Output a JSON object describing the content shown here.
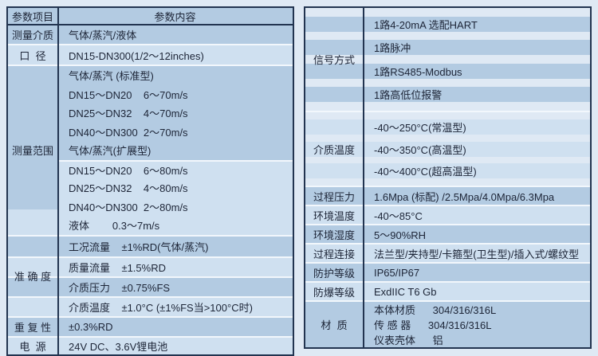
{
  "page": {
    "background": "#dfe9f4",
    "border_color": "#223450",
    "shade_medium": "#b3cbe2",
    "shade_light": "#cfe0f0",
    "separator_color": "#f2f7fc",
    "text_color": "#1d2537"
  },
  "left_table": {
    "header": {
      "col1": "参数项目",
      "col2": "参数内容"
    },
    "sections": [
      {
        "label": "测量介质",
        "lines": [
          {
            "text": "气体/蒸汽/液体",
            "shade": "m"
          }
        ]
      },
      {
        "label": "口  径",
        "lines": [
          {
            "text": "DN15-DN300(1/2～12inches)",
            "shade": "l"
          }
        ]
      },
      {
        "label": "测量范围",
        "label_shade": "split",
        "lines": [
          {
            "text": "气体/蒸汽 (标准型)",
            "shade": "m"
          },
          {
            "text": "DN15～DN20    6～70m/s",
            "shade": "m"
          },
          {
            "text": "DN25～DN32    4～70m/s",
            "shade": "m"
          },
          {
            "text": "DN40～DN300  2～70m/s",
            "shade": "m"
          },
          {
            "text": "气体/蒸汽(扩展型)",
            "shade": "m"
          },
          {
            "text": "DN15～DN20    6～80m/s",
            "shade": "l",
            "sep": true
          },
          {
            "text": "DN25～DN32    4～80m/s",
            "shade": "l"
          },
          {
            "text": "DN40～DN300  2～80m/s",
            "shade": "l"
          },
          {
            "text": "液体        0.3～7m/s",
            "shade": "l"
          }
        ]
      },
      {
        "label": "准 确 度",
        "lines": [
          {
            "text": "工况流量    ±1%RD(气体/蒸汽)",
            "shade": "m"
          },
          {
            "text": "质量流量    ±1.5%RD",
            "shade": "l",
            "sep": true
          },
          {
            "text": "介质压力    ±0.75%FS",
            "shade": "m",
            "sep": true
          },
          {
            "text": "介质温度    ±1.0°C (±1%FS当>100°C时)",
            "shade": "l",
            "sep": true
          }
        ]
      },
      {
        "label": "重 复 性",
        "lines": [
          {
            "text": "±0.3%RD",
            "shade": "m"
          }
        ]
      },
      {
        "label": "电  源",
        "lines": [
          {
            "text": "24V DC、3.6V锂电池",
            "shade": "l"
          }
        ]
      }
    ]
  },
  "right_table": {
    "sections": [
      {
        "label": "信号方式",
        "lines": [
          {
            "text": "1路4-20mA 选配HART",
            "shade": "m"
          },
          {
            "text": "1路脉冲",
            "shade": "m"
          },
          {
            "text": "1路RS485-Modbus",
            "shade": "m"
          },
          {
            "text": "1路高低位报警",
            "shade": "m"
          }
        ]
      },
      {
        "label": "介质温度",
        "lines": [
          {
            "text": "-40～250°C(常温型)",
            "shade": "l"
          },
          {
            "text": "-40～350°C(高温型)",
            "shade": "l"
          },
          {
            "text": "-40～400°C(超高温型)",
            "shade": "l"
          }
        ]
      },
      {
        "label": "过程压力",
        "lines": [
          {
            "text": "1.6Mpa (标配) /2.5Mpa/4.0Mpa/6.3Mpa",
            "shade": "m"
          }
        ]
      },
      {
        "label": "环境温度",
        "lines": [
          {
            "text": "-40～85°C",
            "shade": "l"
          }
        ]
      },
      {
        "label": "环境湿度",
        "lines": [
          {
            "text": "5～90%RH",
            "shade": "m"
          }
        ]
      },
      {
        "label": "过程连接",
        "lines": [
          {
            "text": "法兰型/夹持型/卡箍型(卫生型)/插入式/螺纹型",
            "shade": "l"
          }
        ]
      },
      {
        "label": "防护等级",
        "lines": [
          {
            "text": "IP65/IP67",
            "shade": "m"
          }
        ]
      },
      {
        "label": "防爆等级",
        "lines": [
          {
            "text": "ExdIIC T6 Gb",
            "shade": "l"
          }
        ]
      },
      {
        "label": "材  质",
        "lines": [
          {
            "text": "本体材质      304/316/316L",
            "shade": "m"
          },
          {
            "text": "传 感 器      304/316/316L",
            "shade": "m"
          },
          {
            "text": "仪表壳体      铝",
            "shade": "m"
          }
        ]
      }
    ]
  }
}
